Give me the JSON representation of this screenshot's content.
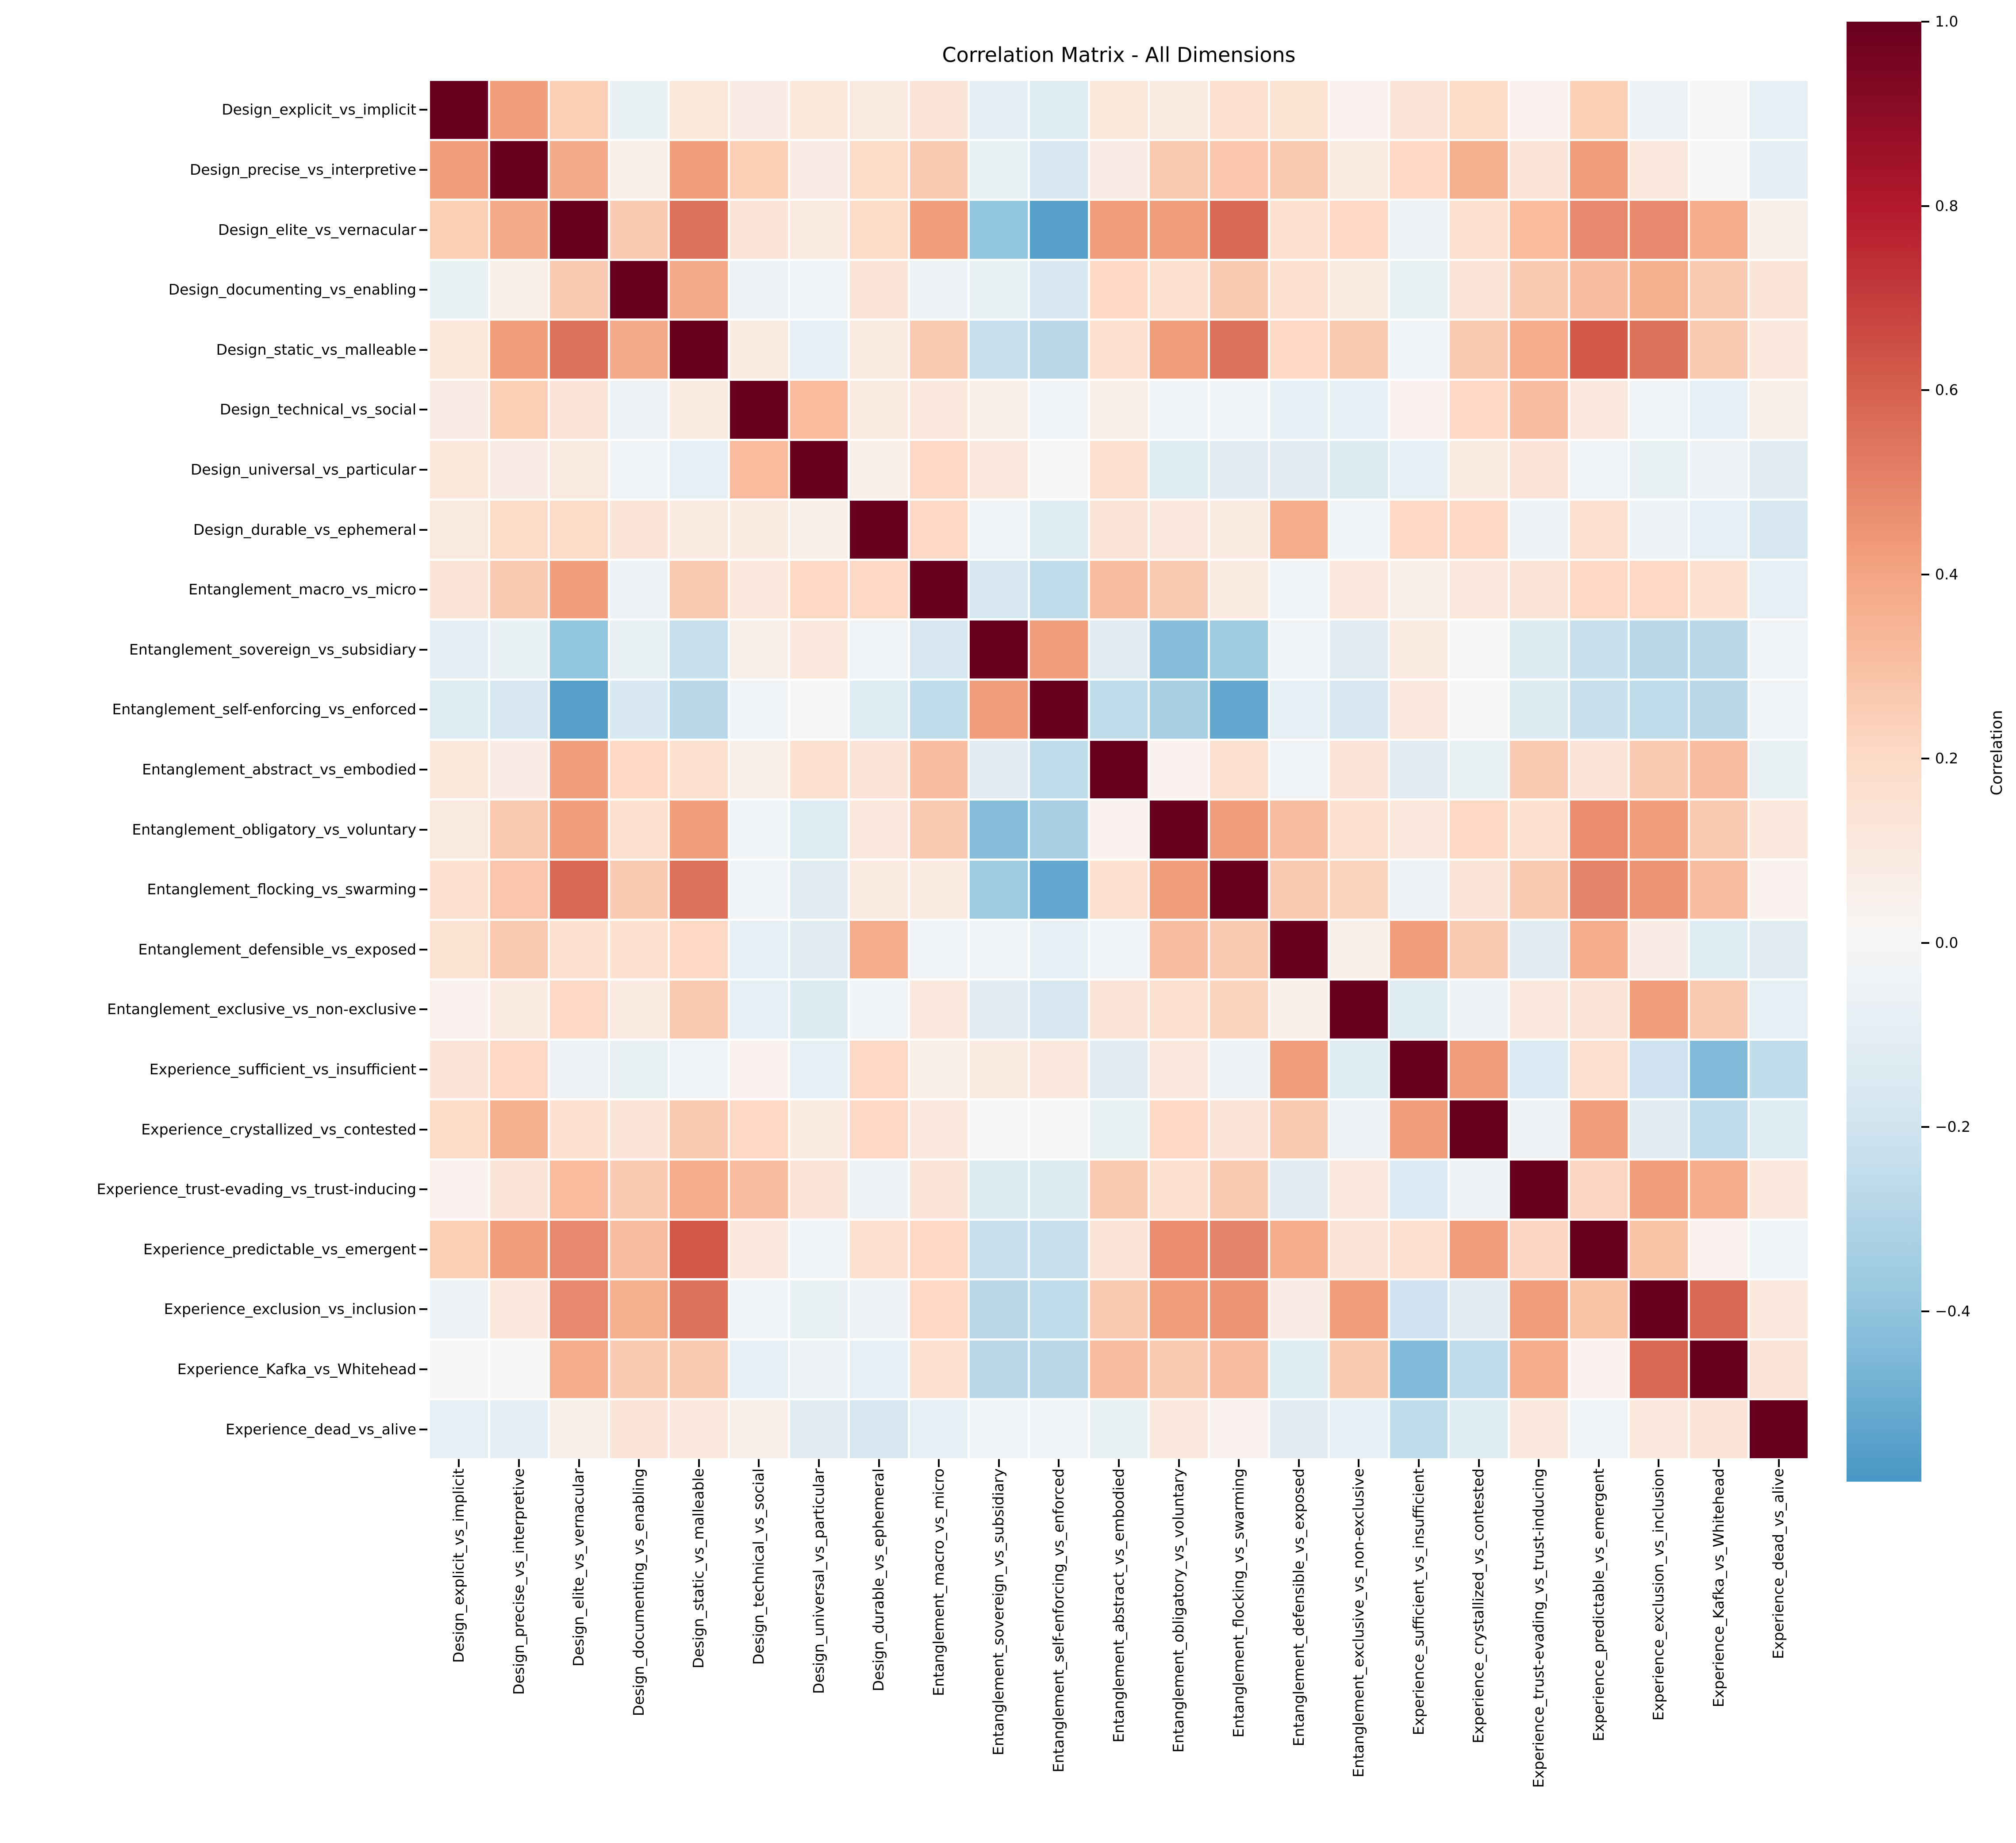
{
  "chart_data": {
    "type": "heatmap",
    "title": "Correlation Matrix - All Dimensions",
    "colormap": "RdBu_r",
    "color_range": [
      -1.0,
      1.0
    ],
    "colorbar_range": [
      -0.585,
      1.0
    ],
    "legend_position": "right",
    "categories": [
      "Design_explicit_vs_implicit",
      "Design_precise_vs_interpretive",
      "Design_elite_vs_vernacular",
      "Design_documenting_vs_enabling",
      "Design_static_vs_malleable",
      "Design_technical_vs_social",
      "Design_universal_vs_particular",
      "Design_durable_vs_ephemeral",
      "Entanglement_macro_vs_micro",
      "Entanglement_sovereign_vs_subsidiary",
      "Entanglement_self-enforcing_vs_enforced",
      "Entanglement_abstract_vs_embodied",
      "Entanglement_obligatory_vs_voluntary",
      "Entanglement_flocking_vs_swarming",
      "Entanglement_defensible_vs_exposed",
      "Entanglement_exclusive_vs_non-exclusive",
      "Experience_sufficient_vs_insufficient",
      "Experience_crystallized_vs_contested",
      "Experience_trust-evading_vs_trust-inducing",
      "Experience_predictable_vs_emergent",
      "Experience_exclusion_vs_inclusion",
      "Experience_Kafka_vs_Whitehead",
      "Experience_dead_vs_alive"
    ],
    "matrix": [
      [
        1.0,
        0.42,
        0.25,
        -0.07,
        0.12,
        0.08,
        0.12,
        0.1,
        0.13,
        -0.1,
        -0.13,
        0.12,
        0.1,
        0.16,
        0.15,
        0.04,
        0.13,
        0.2,
        0.04,
        0.25,
        -0.06,
        0.01,
        -0.09
      ],
      [
        0.42,
        1.0,
        0.38,
        0.06,
        0.42,
        0.25,
        0.08,
        0.2,
        0.26,
        -0.07,
        -0.17,
        0.08,
        0.27,
        0.28,
        0.27,
        0.09,
        0.21,
        0.36,
        0.13,
        0.42,
        0.11,
        0.01,
        -0.1
      ],
      [
        0.25,
        0.38,
        1.0,
        0.26,
        0.55,
        0.13,
        0.1,
        0.2,
        0.42,
        -0.4,
        -0.55,
        0.42,
        0.42,
        0.58,
        0.16,
        0.21,
        -0.06,
        0.16,
        0.32,
        0.48,
        0.48,
        0.37,
        0.06
      ],
      [
        -0.07,
        0.06,
        0.26,
        1.0,
        0.38,
        -0.06,
        -0.04,
        0.13,
        -0.06,
        -0.08,
        -0.16,
        0.21,
        0.16,
        0.26,
        0.16,
        0.09,
        -0.08,
        0.13,
        0.26,
        0.31,
        0.36,
        0.26,
        0.13
      ],
      [
        0.12,
        0.42,
        0.55,
        0.38,
        1.0,
        0.09,
        -0.09,
        0.09,
        0.26,
        -0.23,
        -0.28,
        0.16,
        0.42,
        0.55,
        0.21,
        0.26,
        -0.04,
        0.26,
        0.37,
        0.62,
        0.55,
        0.26,
        0.11
      ],
      [
        0.08,
        0.25,
        0.13,
        -0.06,
        0.09,
        1.0,
        0.32,
        0.09,
        0.11,
        0.06,
        -0.04,
        0.06,
        -0.03,
        -0.03,
        -0.09,
        -0.09,
        0.04,
        0.21,
        0.31,
        0.11,
        -0.04,
        -0.09,
        0.06
      ],
      [
        0.12,
        0.08,
        0.1,
        -0.04,
        -0.09,
        0.32,
        1.0,
        0.06,
        0.21,
        0.11,
        0.01,
        0.16,
        -0.13,
        -0.11,
        -0.11,
        -0.14,
        -0.09,
        0.09,
        0.13,
        -0.04,
        -0.08,
        -0.06,
        -0.11
      ],
      [
        0.1,
        0.2,
        0.2,
        0.13,
        0.09,
        0.09,
        0.06,
        1.0,
        0.21,
        -0.04,
        -0.13,
        0.13,
        0.11,
        0.09,
        0.37,
        -0.03,
        0.21,
        0.21,
        -0.06,
        0.16,
        -0.06,
        -0.09,
        -0.17
      ],
      [
        0.13,
        0.26,
        0.42,
        -0.06,
        0.26,
        0.11,
        0.21,
        0.21,
        1.0,
        -0.17,
        -0.25,
        0.31,
        0.26,
        0.09,
        -0.03,
        0.11,
        0.06,
        0.11,
        0.13,
        0.21,
        0.21,
        0.16,
        -0.09
      ],
      [
        -0.1,
        -0.07,
        -0.4,
        -0.08,
        -0.23,
        0.06,
        0.11,
        -0.04,
        -0.17,
        1.0,
        0.42,
        -0.11,
        -0.43,
        -0.36,
        -0.04,
        -0.11,
        0.09,
        0.01,
        -0.14,
        -0.23,
        -0.28,
        -0.28,
        -0.04
      ],
      [
        -0.13,
        -0.17,
        -0.55,
        -0.16,
        -0.28,
        -0.04,
        0.01,
        -0.13,
        -0.25,
        0.42,
        1.0,
        -0.25,
        -0.33,
        -0.52,
        -0.09,
        -0.17,
        0.11,
        0.01,
        -0.14,
        -0.23,
        -0.25,
        -0.28,
        -0.04
      ],
      [
        0.12,
        0.08,
        0.42,
        0.21,
        0.16,
        0.06,
        0.16,
        0.13,
        0.31,
        -0.11,
        -0.25,
        1.0,
        0.04,
        0.16,
        -0.04,
        0.13,
        -0.11,
        -0.08,
        0.26,
        0.13,
        0.26,
        0.31,
        -0.08
      ],
      [
        0.1,
        0.27,
        0.42,
        0.16,
        0.42,
        -0.03,
        -0.13,
        0.11,
        0.26,
        -0.43,
        -0.33,
        0.04,
        1.0,
        0.42,
        0.31,
        0.16,
        0.11,
        0.21,
        0.16,
        0.47,
        0.42,
        0.26,
        0.11
      ],
      [
        0.16,
        0.28,
        0.58,
        0.26,
        0.55,
        -0.03,
        -0.11,
        0.09,
        0.09,
        -0.36,
        -0.52,
        0.16,
        0.42,
        1.0,
        0.26,
        0.23,
        -0.06,
        0.13,
        0.26,
        0.5,
        0.45,
        0.31,
        0.04
      ],
      [
        0.15,
        0.27,
        0.16,
        0.16,
        0.21,
        -0.09,
        -0.11,
        0.37,
        -0.03,
        -0.04,
        -0.09,
        -0.04,
        0.31,
        0.26,
        1.0,
        0.06,
        0.42,
        0.26,
        -0.11,
        0.37,
        0.08,
        -0.13,
        -0.11
      ],
      [
        0.04,
        0.09,
        0.21,
        0.09,
        0.26,
        -0.09,
        -0.14,
        -0.03,
        0.11,
        -0.11,
        -0.17,
        0.13,
        0.16,
        0.23,
        0.06,
        1.0,
        -0.13,
        -0.06,
        0.11,
        0.13,
        0.42,
        0.26,
        -0.09
      ],
      [
        0.13,
        0.21,
        -0.06,
        -0.08,
        -0.04,
        0.04,
        -0.09,
        0.21,
        0.06,
        0.09,
        0.11,
        -0.11,
        0.11,
        -0.06,
        0.42,
        -0.13,
        1.0,
        0.42,
        -0.15,
        0.17,
        -0.21,
        -0.44,
        -0.25
      ],
      [
        0.2,
        0.36,
        0.16,
        0.13,
        0.26,
        0.21,
        0.09,
        0.21,
        0.11,
        0.01,
        0.01,
        -0.08,
        0.21,
        0.13,
        0.26,
        -0.06,
        0.42,
        1.0,
        -0.06,
        0.43,
        -0.11,
        -0.26,
        -0.12
      ],
      [
        0.04,
        0.13,
        0.32,
        0.26,
        0.37,
        0.31,
        0.13,
        -0.06,
        0.13,
        -0.14,
        -0.14,
        0.26,
        0.16,
        0.26,
        -0.11,
        0.11,
        -0.15,
        -0.06,
        1.0,
        0.22,
        0.42,
        0.37,
        0.11
      ],
      [
        0.25,
        0.42,
        0.48,
        0.31,
        0.62,
        0.11,
        -0.04,
        0.16,
        0.21,
        -0.23,
        -0.23,
        0.13,
        0.47,
        0.5,
        0.37,
        0.13,
        0.17,
        0.43,
        0.22,
        1.0,
        0.29,
        0.04,
        -0.05
      ],
      [
        -0.06,
        0.11,
        0.48,
        0.36,
        0.55,
        -0.04,
        -0.08,
        -0.06,
        0.21,
        -0.28,
        -0.25,
        0.26,
        0.42,
        0.45,
        0.08,
        0.42,
        -0.21,
        -0.11,
        0.42,
        0.29,
        1.0,
        0.58,
        0.11
      ],
      [
        0.01,
        0.01,
        0.37,
        0.26,
        0.26,
        -0.09,
        -0.06,
        -0.09,
        0.16,
        -0.28,
        -0.28,
        0.31,
        0.26,
        0.31,
        -0.13,
        0.26,
        -0.44,
        -0.26,
        0.37,
        0.04,
        0.58,
        1.0,
        0.14
      ],
      [
        -0.09,
        -0.1,
        0.06,
        0.13,
        0.11,
        0.06,
        -0.11,
        -0.17,
        -0.09,
        -0.04,
        -0.04,
        -0.08,
        0.11,
        0.04,
        -0.11,
        -0.09,
        -0.25,
        -0.12,
        0.11,
        -0.05,
        0.11,
        0.14,
        1.0
      ]
    ]
  },
  "colorbar": {
    "label": "Correlation",
    "ticks": [
      {
        "label": "1.0",
        "value": 1.0
      },
      {
        "label": "0.8",
        "value": 0.8
      },
      {
        "label": "0.6",
        "value": 0.6
      },
      {
        "label": "0.4",
        "value": 0.4
      },
      {
        "label": "0.2",
        "value": 0.2
      },
      {
        "label": "0.0",
        "value": 0.0
      },
      {
        "label": "−0.2",
        "value": -0.2
      },
      {
        "label": "−0.4",
        "value": -0.4
      }
    ]
  }
}
